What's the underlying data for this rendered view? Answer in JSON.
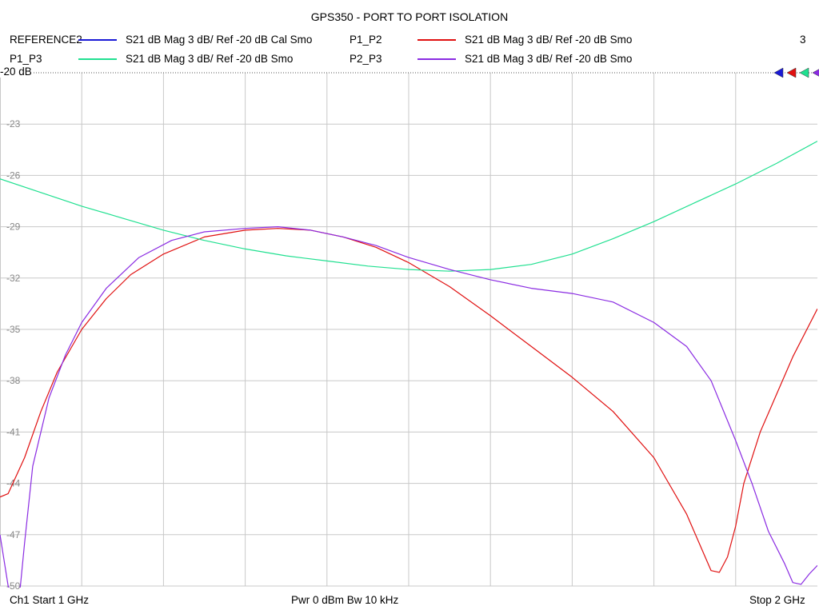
{
  "title": "GPS350 - PORT TO PORT ISOLATION",
  "legend": [
    {
      "name": "REFERENCE2",
      "desc": "S21  dB Mag  3 dB/ Ref -20 dB  Cal Smo",
      "color": "#1a1ad6"
    },
    {
      "name": "P1_P2",
      "desc": "S21  dB Mag  3 dB/ Ref -20 dB  Smo",
      "color": "#e01010"
    },
    {
      "name": "P1_P3",
      "desc": "S21  dB Mag  3 dB/ Ref -20 dB  Smo",
      "color": "#20e090"
    },
    {
      "name": "P2_P3",
      "desc": "S21  dB Mag  3 dB/ Ref -20 dB  Smo",
      "color": "#8a2be2"
    }
  ],
  "marker_count": "3",
  "ref_label": "-20 dB",
  "footer": {
    "left": "Ch1  Start  1 GHz",
    "center": "Pwr  0 dBm  Bw  10 kHz",
    "right": "Stop  2 GHz"
  },
  "chart_data": {
    "type": "line",
    "title": "GPS350 - PORT TO PORT ISOLATION",
    "xlabel": "",
    "ylabel": "",
    "xlim": [
      1.0,
      2.0
    ],
    "ylim": [
      -50,
      -20
    ],
    "yticks": [
      -20,
      -23,
      -26,
      -29,
      -32,
      -35,
      -38,
      -41,
      -44,
      -47,
      -50
    ],
    "ytick_labels": [
      "-20",
      "-23",
      "-26",
      "-29",
      "-32",
      "-35",
      "-38",
      "-41",
      "-44",
      "-47",
      "-50"
    ],
    "grid": true,
    "x_unit": "GHz",
    "series": [
      {
        "name": "P1_P2",
        "color": "#e01010",
        "x": [
          1.0,
          1.01,
          1.03,
          1.05,
          1.07,
          1.1,
          1.13,
          1.16,
          1.2,
          1.25,
          1.3,
          1.34,
          1.38,
          1.42,
          1.46,
          1.5,
          1.55,
          1.6,
          1.65,
          1.7,
          1.75,
          1.8,
          1.84,
          1.86,
          1.87,
          1.88,
          1.89,
          1.9,
          1.91,
          1.93,
          1.95,
          1.97,
          2.0
        ],
        "y": [
          -44.8,
          -44.6,
          -42.5,
          -39.8,
          -37.5,
          -35.0,
          -33.2,
          -31.8,
          -30.6,
          -29.6,
          -29.2,
          -29.1,
          -29.2,
          -29.6,
          -30.2,
          -31.1,
          -32.5,
          -34.2,
          -36.0,
          -37.8,
          -39.8,
          -42.5,
          -45.8,
          -48.0,
          -49.1,
          -49.2,
          -48.3,
          -46.5,
          -44.0,
          -41.0,
          -38.8,
          -36.6,
          -33.8
        ]
      },
      {
        "name": "P1_P3",
        "color": "#20e090",
        "x": [
          1.0,
          1.05,
          1.1,
          1.15,
          1.2,
          1.25,
          1.3,
          1.35,
          1.4,
          1.45,
          1.5,
          1.55,
          1.6,
          1.65,
          1.7,
          1.75,
          1.8,
          1.85,
          1.9,
          1.95,
          2.0
        ],
        "y": [
          -26.2,
          -27.0,
          -27.8,
          -28.5,
          -29.2,
          -29.8,
          -30.3,
          -30.7,
          -31.0,
          -31.3,
          -31.5,
          -31.6,
          -31.5,
          -31.2,
          -30.6,
          -29.7,
          -28.7,
          -27.6,
          -26.5,
          -25.3,
          -24.0
        ]
      },
      {
        "name": "P2_P3",
        "color": "#8a2be2",
        "x": [
          1.0,
          1.01,
          1.02,
          1.025,
          1.03,
          1.04,
          1.06,
          1.08,
          1.1,
          1.13,
          1.17,
          1.21,
          1.25,
          1.3,
          1.34,
          1.38,
          1.42,
          1.46,
          1.5,
          1.55,
          1.6,
          1.65,
          1.7,
          1.75,
          1.8,
          1.84,
          1.87,
          1.9,
          1.92,
          1.94,
          1.96,
          1.97,
          1.98,
          1.99,
          2.0
        ],
        "y": [
          -47.0,
          -50.0,
          -51.0,
          -50.0,
          -47.5,
          -43.0,
          -39.0,
          -36.5,
          -34.6,
          -32.6,
          -30.8,
          -29.8,
          -29.3,
          -29.1,
          -29.0,
          -29.2,
          -29.6,
          -30.1,
          -30.8,
          -31.5,
          -32.1,
          -32.6,
          -32.9,
          -33.4,
          -34.6,
          -36.0,
          -38.0,
          -41.5,
          -44.0,
          -46.8,
          -48.7,
          -49.8,
          -49.9,
          -49.3,
          -48.8
        ]
      }
    ]
  }
}
